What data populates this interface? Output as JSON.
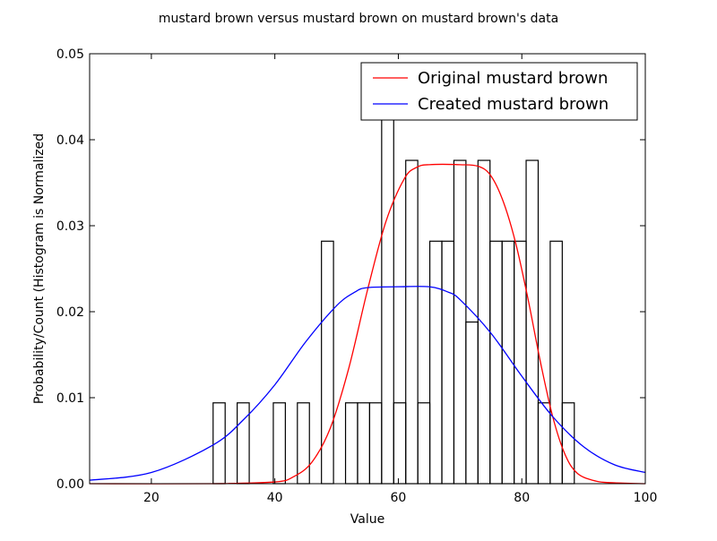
{
  "chart_data": {
    "type": "bar",
    "title": "mustard brown versus mustard brown on mustard brown's data",
    "xlabel": "Value",
    "ylabel": "Probability/Count (Histogram is Normalized",
    "xlim": [
      10,
      100
    ],
    "ylim": [
      0,
      0.05
    ],
    "xticks": [
      20,
      40,
      60,
      80,
      100
    ],
    "xtick_labels": [
      "20",
      "40",
      "60",
      "80",
      "100"
    ],
    "yticks": [
      0.0,
      0.01,
      0.02,
      0.03,
      0.04,
      0.05
    ],
    "ytick_labels": [
      "0.00",
      "0.01",
      "0.02",
      "0.03",
      "0.04",
      "0.05"
    ],
    "grid": false,
    "legend_position": "upper-right",
    "histogram": {
      "bin_width": 1.95,
      "bins": [
        {
          "left": 30.0,
          "value": 0.0094
        },
        {
          "left": 33.9,
          "value": 0.0094
        },
        {
          "left": 39.75,
          "value": 0.0094
        },
        {
          "left": 43.65,
          "value": 0.0094
        },
        {
          "left": 47.55,
          "value": 0.0282
        },
        {
          "left": 51.45,
          "value": 0.0094
        },
        {
          "left": 53.4,
          "value": 0.0094
        },
        {
          "left": 55.35,
          "value": 0.0094
        },
        {
          "left": 57.3,
          "value": 0.0436
        },
        {
          "left": 59.25,
          "value": 0.0094
        },
        {
          "left": 61.2,
          "value": 0.0376
        },
        {
          "left": 63.15,
          "value": 0.0094
        },
        {
          "left": 65.1,
          "value": 0.0282
        },
        {
          "left": 67.05,
          "value": 0.0282
        },
        {
          "left": 69.0,
          "value": 0.0376
        },
        {
          "left": 70.95,
          "value": 0.0188
        },
        {
          "left": 72.9,
          "value": 0.0376
        },
        {
          "left": 74.85,
          "value": 0.0282
        },
        {
          "left": 76.8,
          "value": 0.0282
        },
        {
          "left": 78.75,
          "value": 0.0282
        },
        {
          "left": 80.7,
          "value": 0.0376
        },
        {
          "left": 82.65,
          "value": 0.0094
        },
        {
          "left": 84.6,
          "value": 0.0282
        },
        {
          "left": 86.55,
          "value": 0.0094
        }
      ]
    },
    "series": [
      {
        "name": "Original mustard brown",
        "color": "#ff0000",
        "points": [
          [
            10,
            0
          ],
          [
            30,
            0
          ],
          [
            40,
            0.0002
          ],
          [
            43,
            0.0008
          ],
          [
            46,
            0.0025
          ],
          [
            49,
            0.0065
          ],
          [
            52,
            0.0135
          ],
          [
            55,
            0.0225
          ],
          [
            58,
            0.0305
          ],
          [
            61,
            0.0355
          ],
          [
            63,
            0.0368
          ],
          [
            65,
            0.0371
          ],
          [
            70,
            0.0371
          ],
          [
            73,
            0.0369
          ],
          [
            75,
            0.0358
          ],
          [
            77,
            0.0328
          ],
          [
            79,
            0.028
          ],
          [
            81,
            0.0215
          ],
          [
            83,
            0.0142
          ],
          [
            85,
            0.0078
          ],
          [
            87,
            0.0034
          ],
          [
            89,
            0.0012
          ],
          [
            92,
            0.0003
          ],
          [
            95,
            0.0001
          ],
          [
            100,
            0.0
          ]
        ]
      },
      {
        "name": "Created mustard brown",
        "color": "#0000ff",
        "points": [
          [
            10,
            0.0004
          ],
          [
            20,
            0.0013
          ],
          [
            30,
            0.0045
          ],
          [
            35,
            0.0075
          ],
          [
            40,
            0.0115
          ],
          [
            45,
            0.0165
          ],
          [
            50,
            0.0207
          ],
          [
            53,
            0.0223
          ],
          [
            55,
            0.0228
          ],
          [
            60,
            0.0229
          ],
          [
            65,
            0.0229
          ],
          [
            68,
            0.0223
          ],
          [
            70,
            0.0214
          ],
          [
            75,
            0.0175
          ],
          [
            80,
            0.0125
          ],
          [
            85,
            0.0078
          ],
          [
            90,
            0.0043
          ],
          [
            95,
            0.0022
          ],
          [
            100,
            0.0013
          ]
        ]
      }
    ]
  }
}
